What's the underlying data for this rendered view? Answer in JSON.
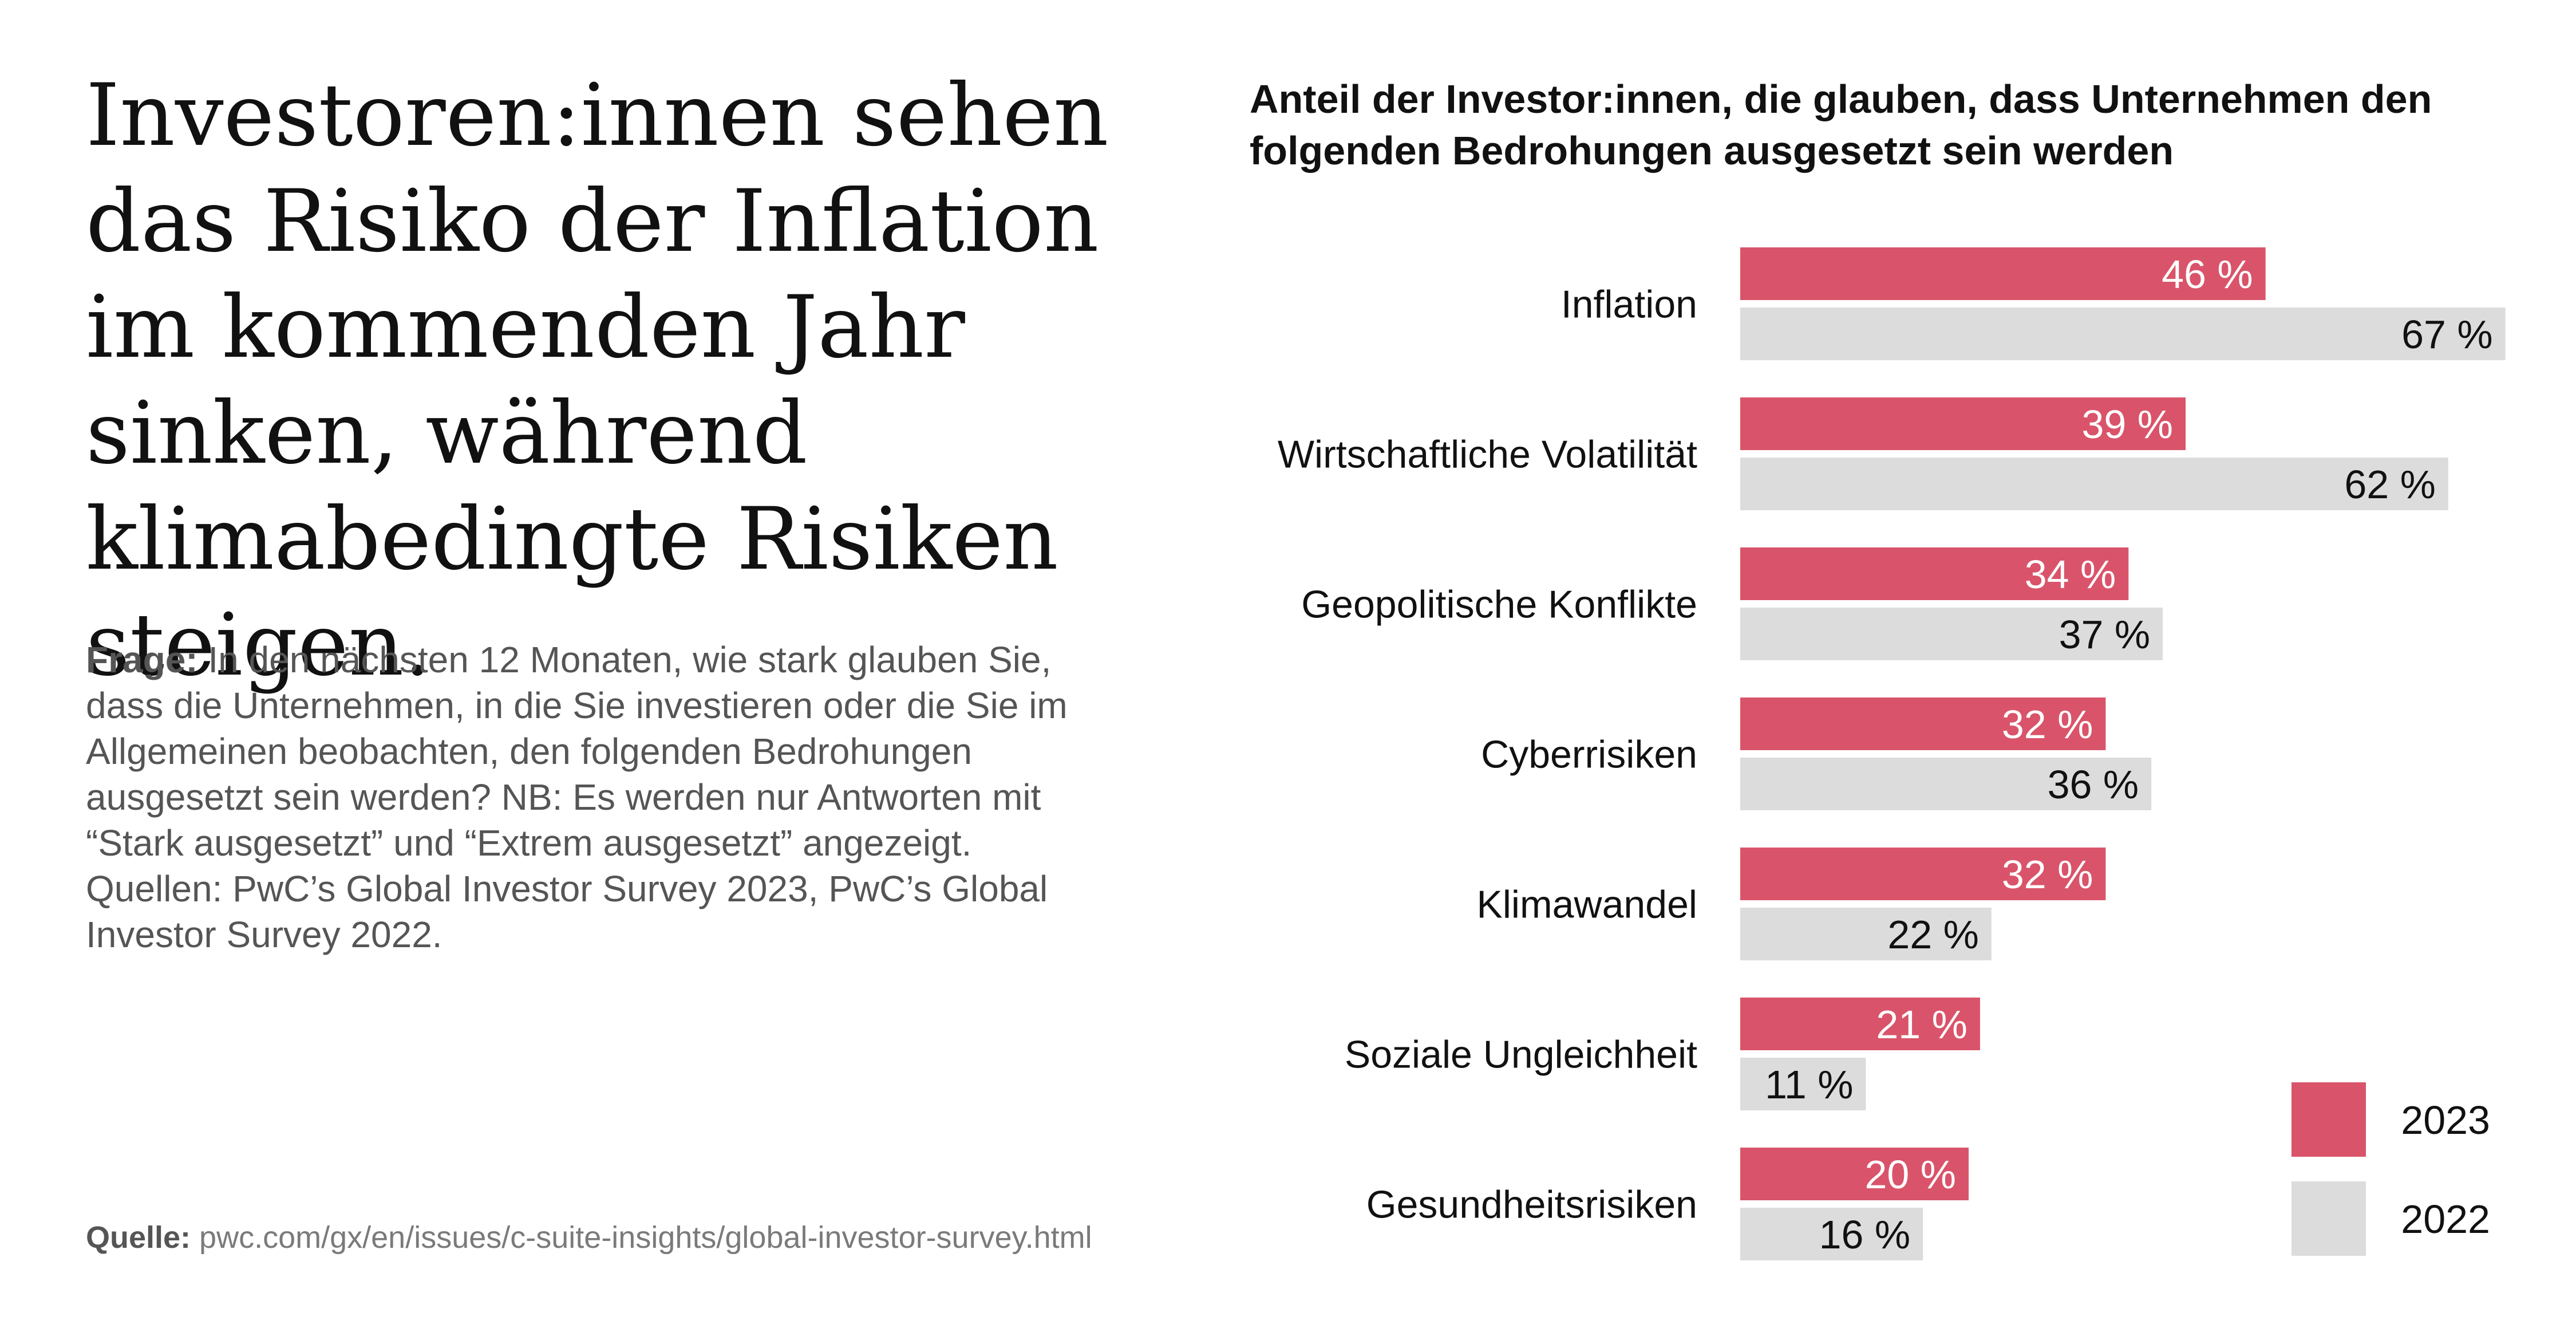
{
  "headline": "Investoren:innen sehen das Risiko der Inflation im kommenden Jahr sinken, während klimabedingte Risiken steigen.",
  "question": {
    "label": "Frage:",
    "text": " In den nächsten 12 Monaten, wie stark glauben Sie, dass die Unternehmen, in die Sie investieren oder die Sie im Allgemeinen beobachten, den folgenden Bedrohungen ausgesetzt sein werden? NB: Es werden nur Antworten mit “Stark ausgesetzt” und “Extrem ausgesetzt” angezeigt. Quellen: PwC’s Global Investor Survey 2023, PwC’s Global Investor Survey 2022."
  },
  "source": {
    "label": "Quelle:",
    "text": " pwc.com/gx/en/issues/c-suite-insights/global-investor-survey.html"
  },
  "colors": {
    "series_2023": "#d9546a",
    "series_2022": "#dcdcdc",
    "label_on_2023": "#ffffff",
    "label_on_2022": "#111111"
  },
  "chart_data": {
    "type": "bar",
    "orientation": "horizontal",
    "title": "Anteil der Investor:innen, die glauben, dass Unternehmen den folgenden Bedrohungen ausgesetzt sein werden",
    "categories": [
      "Inflation",
      "Wirtschaftliche Volatilität",
      "Geopolitische Konflikte",
      "Cyberrisiken",
      "Klimawandel",
      "Soziale Ungleichheit",
      "Gesundheitsrisiken"
    ],
    "series": [
      {
        "name": "2023",
        "values": [
          46,
          39,
          34,
          32,
          32,
          21,
          20
        ]
      },
      {
        "name": "2022",
        "values": [
          67,
          62,
          37,
          36,
          22,
          11,
          16
        ]
      }
    ],
    "value_suffix": " %",
    "xlim": [
      0,
      70
    ],
    "grid": false,
    "legend_position": "bottom-right"
  }
}
